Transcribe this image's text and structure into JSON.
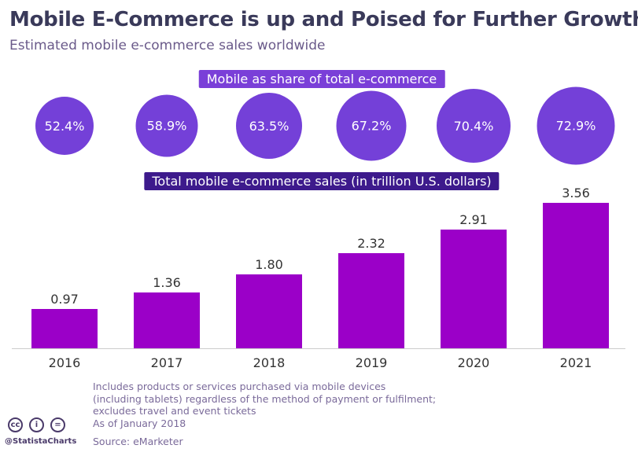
{
  "title": "Mobile E-Commerce is up and Poised for Further Growth",
  "subtitle": "Estimated mobile e-commerce sales worldwide",
  "share_label": "Mobile as share of total e-commerce",
  "sales_label": "Total mobile e-commerce sales (in trillion U.S. dollars)",
  "notes": [
    "Includes products or services purchased via mobile devices",
    "(including tablets) regardless of the method of payment or fulfilment;",
    "excludes travel and event tickets",
    "As of January 2018"
  ],
  "source": "Source: eMarketer",
  "handle": "@StatistaCharts",
  "license_icons": [
    "cc-icon",
    "by-icon",
    "nd-icon"
  ],
  "colors": {
    "bar": "#9b00c8",
    "circle": "#7440d8",
    "pill_share": "#7a3fd8",
    "pill_sales": "#3d1a8c"
  },
  "chart_data": {
    "type": "bar",
    "categories": [
      "2016",
      "2017",
      "2018",
      "2019",
      "2020",
      "2021"
    ],
    "values": [
      0.97,
      1.36,
      1.8,
      2.32,
      2.91,
      3.56
    ],
    "value_labels": [
      "0.97",
      "1.36",
      "1.80",
      "2.32",
      "2.91",
      "3.56"
    ],
    "share_values": [
      52.4,
      58.9,
      63.5,
      67.2,
      70.4,
      72.9
    ],
    "share_labels": [
      "52.4%",
      "58.9%",
      "63.5%",
      "67.2%",
      "70.4%",
      "72.9%"
    ],
    "ylim": [
      0,
      3.6
    ],
    "grid": false
  }
}
